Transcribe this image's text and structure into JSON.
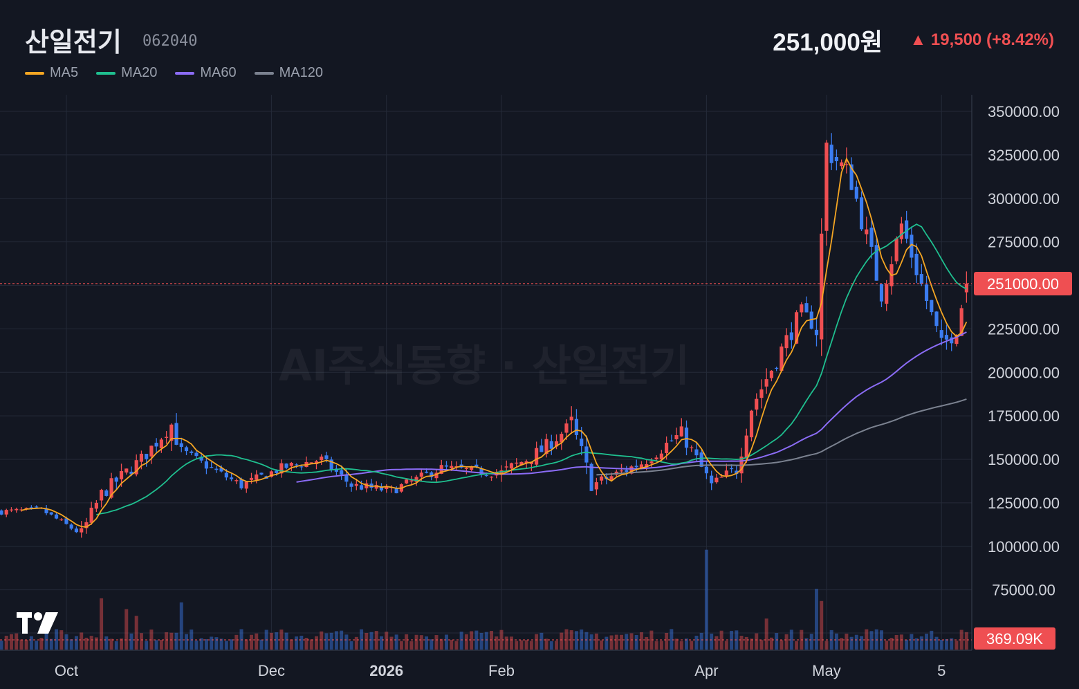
{
  "header": {
    "title": "산일전기",
    "code": "062040",
    "price": "251,000원",
    "change": "▲ 19,500 (+8.42%)"
  },
  "legend": [
    {
      "label": "MA5",
      "color": "#f5a623"
    },
    {
      "label": "MA20",
      "color": "#1fbf8f"
    },
    {
      "label": "MA60",
      "color": "#8b6cf6"
    },
    {
      "label": "MA120",
      "color": "#7b8290"
    }
  ],
  "watermark": "AI주식동향 · 산일전기",
  "colors": {
    "up": "#ef4f52",
    "down": "#3b7cf0",
    "background": "#131722",
    "grid": "#242a38"
  },
  "chart_data": {
    "type": "candlestick",
    "y_ticks": [
      "350000.00",
      "325000.00",
      "300000.00",
      "275000.00",
      "250000.00",
      "225000.00",
      "200000.00",
      "175000.00",
      "150000.00",
      "125000.00",
      "100000.00",
      "75000.00"
    ],
    "ylim": [
      50000,
      360000
    ],
    "x_ticks": [
      {
        "label": "Oct",
        "idx": 13
      },
      {
        "label": "Dec",
        "idx": 54
      },
      {
        "label": "2026",
        "idx": 77,
        "bold": true
      },
      {
        "label": "Feb",
        "idx": 100
      },
      {
        "label": "Apr",
        "idx": 141
      },
      {
        "label": "May",
        "idx": 165
      },
      {
        "label": "5",
        "idx": 188
      }
    ],
    "last_price_label": "251000.00",
    "volume_label": "369.09K",
    "ohlc_segments": [
      {
        "from": 0,
        "to": 8,
        "start": 120000,
        "end": 121000,
        "amp": 2500
      },
      {
        "from": 8,
        "to": 16,
        "start": 121000,
        "end": 107000,
        "amp": 2500
      },
      {
        "from": 16,
        "to": 20,
        "start": 107000,
        "end": 130000,
        "amp": 6000
      },
      {
        "from": 20,
        "to": 28,
        "start": 130000,
        "end": 150000,
        "amp": 6000
      },
      {
        "from": 28,
        "to": 34,
        "start": 150000,
        "end": 170000,
        "amp": 6000
      },
      {
        "from": 34,
        "to": 36,
        "start": 170000,
        "end": 155000,
        "amp": 8000
      },
      {
        "from": 36,
        "to": 40,
        "start": 155000,
        "end": 148000,
        "amp": 4000
      },
      {
        "from": 40,
        "to": 48,
        "start": 148000,
        "end": 135000,
        "amp": 4000
      },
      {
        "from": 48,
        "to": 56,
        "start": 135000,
        "end": 145000,
        "amp": 4000
      },
      {
        "from": 56,
        "to": 64,
        "start": 145000,
        "end": 150000,
        "amp": 4000
      },
      {
        "from": 64,
        "to": 70,
        "start": 150000,
        "end": 135000,
        "amp": 4000
      },
      {
        "from": 70,
        "to": 78,
        "start": 135000,
        "end": 132000,
        "amp": 4000
      },
      {
        "from": 78,
        "to": 88,
        "start": 132000,
        "end": 145000,
        "amp": 4000
      },
      {
        "from": 88,
        "to": 100,
        "start": 145000,
        "end": 142000,
        "amp": 4000
      },
      {
        "from": 100,
        "to": 108,
        "start": 142000,
        "end": 155000,
        "amp": 6000
      },
      {
        "from": 108,
        "to": 114,
        "start": 155000,
        "end": 170000,
        "amp": 6000
      },
      {
        "from": 114,
        "to": 118,
        "start": 170000,
        "end": 135000,
        "amp": 10000
      },
      {
        "from": 118,
        "to": 128,
        "start": 135000,
        "end": 148000,
        "amp": 5000
      },
      {
        "from": 128,
        "to": 136,
        "start": 148000,
        "end": 165000,
        "amp": 6000
      },
      {
        "from": 136,
        "to": 142,
        "start": 165000,
        "end": 135000,
        "amp": 6000
      },
      {
        "from": 142,
        "to": 147,
        "start": 135000,
        "end": 145000,
        "amp": 5000
      },
      {
        "from": 147,
        "to": 150,
        "start": 145000,
        "end": 180000,
        "amp": 8000
      },
      {
        "from": 150,
        "to": 160,
        "start": 180000,
        "end": 235000,
        "amp": 8000
      },
      {
        "from": 160,
        "to": 163,
        "start": 235000,
        "end": 225000,
        "amp": 6000
      },
      {
        "from": 163,
        "to": 165,
        "start": 225000,
        "end": 330000,
        "amp": 12000
      },
      {
        "from": 165,
        "to": 170,
        "start": 330000,
        "end": 310000,
        "amp": 12000
      },
      {
        "from": 170,
        "to": 176,
        "start": 310000,
        "end": 245000,
        "amp": 10000
      },
      {
        "from": 176,
        "to": 180,
        "start": 245000,
        "end": 285000,
        "amp": 8000
      },
      {
        "from": 180,
        "to": 184,
        "start": 285000,
        "end": 250000,
        "amp": 8000
      },
      {
        "from": 184,
        "to": 188,
        "start": 250000,
        "end": 215000,
        "amp": 8000
      },
      {
        "from": 188,
        "to": 191,
        "start": 215000,
        "end": 225000,
        "amp": 8000
      },
      {
        "from": 191,
        "to": 193,
        "start": 225000,
        "end": 251000,
        "amp": 6000
      }
    ],
    "volume_spikes": [
      {
        "idx": 20,
        "v": 0.38
      },
      {
        "idx": 25,
        "v": 0.3
      },
      {
        "idx": 27,
        "v": 0.25
      },
      {
        "idx": 36,
        "v": 0.35
      },
      {
        "idx": 141,
        "v": 0.74
      },
      {
        "idx": 153,
        "v": 0.23
      },
      {
        "idx": 163,
        "v": 0.45
      },
      {
        "idx": 164,
        "v": 0.36
      }
    ]
  }
}
